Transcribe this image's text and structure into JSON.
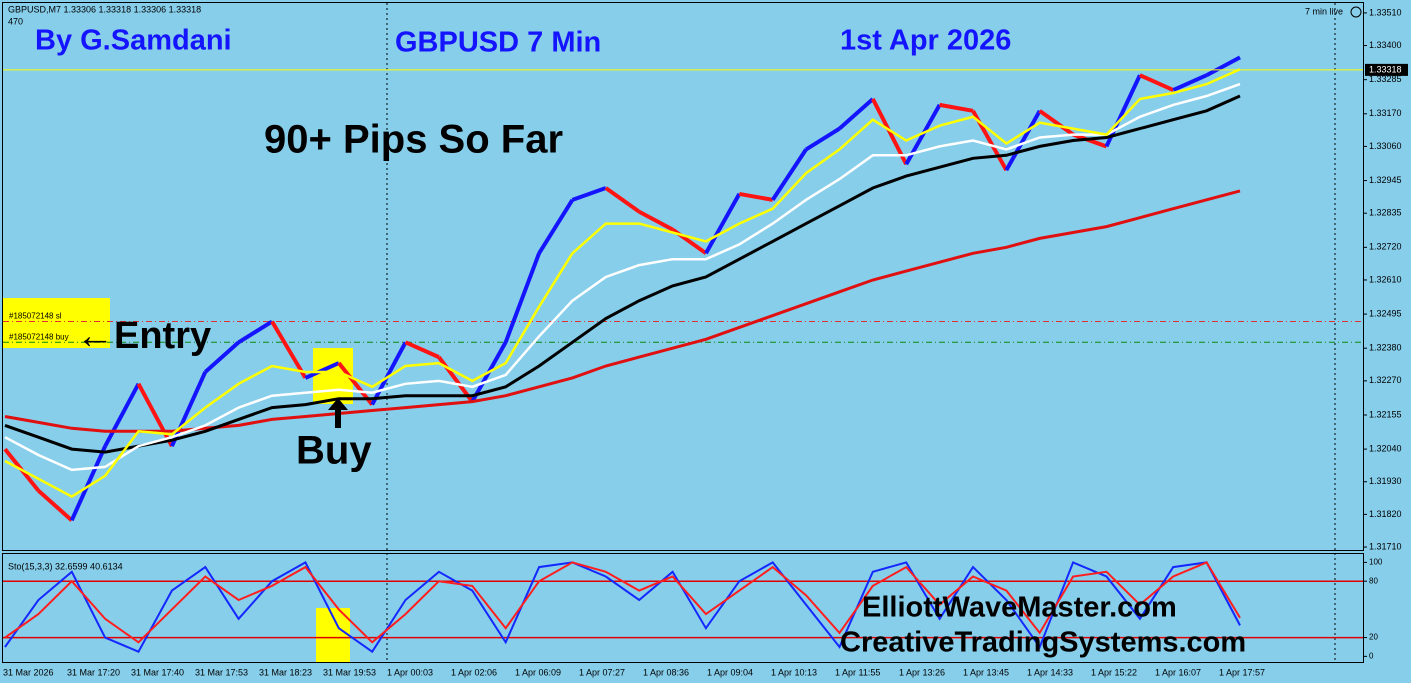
{
  "chart_data": [
    {
      "type": "line",
      "header": "GBPUSD,M7  1.33306 1.33318 1.33306 1.33318",
      "bars": "470",
      "status": "7 min live",
      "author": "By G.Samdani",
      "title": "GBPUSD 7 Min",
      "date": "1st Apr 2026",
      "headline": "90+ Pips So Far",
      "annotations": [
        "←Entry",
        "Buy"
      ],
      "price": {
        "up_color": "#1414ff",
        "down_color": "#ff1414",
        "values": [
          1.3204,
          1.319,
          1.318,
          1.3205,
          1.3226,
          1.3205,
          1.323,
          1.324,
          1.3247,
          1.3228,
          1.3233,
          1.3219,
          1.324,
          1.3235,
          1.322,
          1.324,
          1.327,
          1.3288,
          1.3292,
          1.3284,
          1.3278,
          1.327,
          1.329,
          1.3288,
          1.3305,
          1.3312,
          1.3322,
          1.33,
          1.332,
          1.3318,
          1.3298,
          1.3318,
          1.331,
          1.3306,
          1.333,
          1.3325,
          1.333,
          1.3336
        ]
      },
      "series": [
        {
          "color": "#e01010",
          "values": [
            1.3215,
            1.3213,
            1.3211,
            1.321,
            1.321,
            1.321,
            1.3211,
            1.3212,
            1.3214,
            1.3215,
            1.3216,
            1.3217,
            1.3218,
            1.3219,
            1.322,
            1.3222,
            1.3225,
            1.3228,
            1.3232,
            1.3235,
            1.3238,
            1.3241,
            1.3245,
            1.3249,
            1.3253,
            1.3257,
            1.3261,
            1.3264,
            1.3267,
            1.327,
            1.3272,
            1.3275,
            1.3277,
            1.3279,
            1.3282,
            1.3285,
            1.3288,
            1.3291
          ]
        },
        {
          "color": "#000000",
          "values": [
            1.3212,
            1.3208,
            1.3204,
            1.3203,
            1.3205,
            1.3207,
            1.321,
            1.3214,
            1.3218,
            1.3219,
            1.3221,
            1.3221,
            1.3222,
            1.3222,
            1.3222,
            1.3225,
            1.3232,
            1.324,
            1.3248,
            1.3254,
            1.3259,
            1.3262,
            1.3268,
            1.3274,
            1.328,
            1.3286,
            1.3292,
            1.3296,
            1.3299,
            1.3302,
            1.3303,
            1.3306,
            1.3308,
            1.3309,
            1.3312,
            1.3315,
            1.3318,
            1.3323
          ]
        },
        {
          "color": "#ffffff",
          "values": [
            1.3208,
            1.3202,
            1.3197,
            1.3198,
            1.3205,
            1.3208,
            1.3212,
            1.3218,
            1.3222,
            1.3223,
            1.3224,
            1.3223,
            1.3226,
            1.3227,
            1.3225,
            1.3229,
            1.3242,
            1.3254,
            1.3262,
            1.3266,
            1.3268,
            1.3268,
            1.3273,
            1.328,
            1.3288,
            1.3295,
            1.3303,
            1.3303,
            1.3306,
            1.3308,
            1.3305,
            1.3309,
            1.331,
            1.331,
            1.3316,
            1.332,
            1.3323,
            1.3327
          ]
        },
        {
          "color": "#ffff00",
          "values": [
            1.32,
            1.3194,
            1.3188,
            1.3195,
            1.321,
            1.3209,
            1.3218,
            1.3226,
            1.3232,
            1.323,
            1.323,
            1.3225,
            1.3232,
            1.3233,
            1.3227,
            1.3233,
            1.3252,
            1.327,
            1.328,
            1.328,
            1.3277,
            1.3274,
            1.328,
            1.3285,
            1.3297,
            1.3305,
            1.3315,
            1.3308,
            1.3313,
            1.3316,
            1.3307,
            1.3314,
            1.3312,
            1.331,
            1.3322,
            1.3324,
            1.3327,
            1.3332
          ]
        }
      ],
      "levels": [
        {
          "name": "#185072148 sl",
          "value": 1.3247,
          "color": "#e03030"
        },
        {
          "name": "#185072148 buy",
          "value": 1.324,
          "color": "#0a8a0a"
        }
      ],
      "current_price": {
        "value": 1.33318,
        "color": "#ffff00"
      },
      "ylim": [
        1.317,
        1.3354
      ],
      "yticks": [
        {
          "value": 1.3351,
          "label": "1.33510"
        },
        {
          "value": 1.334,
          "label": "1.33400"
        },
        1.33285,
        {
          "value": 1.3317,
          "label": "1.33170"
        },
        {
          "value": 1.3306,
          "label": "1.33060"
        },
        1.32945,
        1.32835,
        {
          "value": 1.3272,
          "label": "1.32720"
        },
        {
          "value": 1.3261,
          "label": "1.32610"
        },
        1.32495,
        {
          "value": 1.3238,
          "label": "1.32380"
        },
        {
          "value": 1.3227,
          "label": "1.32270"
        },
        1.32155,
        {
          "value": 1.3204,
          "label": "1.32040"
        },
        {
          "value": 1.3193,
          "label": "1.31930"
        },
        {
          "value": 1.3182,
          "label": "1.31820"
        },
        {
          "value": 1.3171,
          "label": "1.31710"
        }
      ]
    },
    {
      "type": "line",
      "header": "Sto(15,3,3) 32.6599 40.6134",
      "series": [
        {
          "color": "#1428ff",
          "values": [
            10,
            60,
            90,
            20,
            5,
            70,
            95,
            40,
            80,
            100,
            30,
            5,
            60,
            90,
            70,
            15,
            95,
            100,
            85,
            60,
            90,
            30,
            80,
            100,
            55,
            10,
            90,
            100,
            40,
            95,
            60,
            10,
            100,
            85,
            40,
            95,
            100,
            33
          ]
        },
        {
          "color": "#ff1e1e",
          "values": [
            20,
            45,
            80,
            40,
            15,
            50,
            85,
            60,
            75,
            95,
            50,
            15,
            45,
            80,
            75,
            30,
            80,
            100,
            90,
            70,
            85,
            45,
            70,
            95,
            65,
            25,
            75,
            95,
            55,
            85,
            70,
            25,
            85,
            90,
            55,
            85,
            100,
            41
          ]
        }
      ],
      "levels": [
        80,
        20
      ],
      "level_color": "#e00000",
      "ylim": [
        -6,
        110
      ],
      "yticks": [
        100,
        80,
        20,
        0
      ],
      "xticks": [
        "31 Mar 2026",
        "31 Mar 17:20",
        "31 Mar 17:40",
        "31 Mar 17:53",
        "31 Mar 18:23",
        "31 Mar 19:53",
        "1 Apr 00:03",
        "1 Apr 02:06",
        "1 Apr 06:09",
        "1 Apr 07:27",
        "1 Apr 08:36",
        "1 Apr 09:04",
        "1 Apr 10:13",
        "1 Apr 11:55",
        "1 Apr 13:26",
        "1 Apr 13:45",
        "1 Apr 14:33",
        "1 Apr 15:22",
        "1 Apr 16:07",
        "1 Apr 17:57"
      ],
      "watermarks": [
        "ElliottWaveMaster.com",
        "CreativeTradingSystems.com"
      ]
    }
  ]
}
